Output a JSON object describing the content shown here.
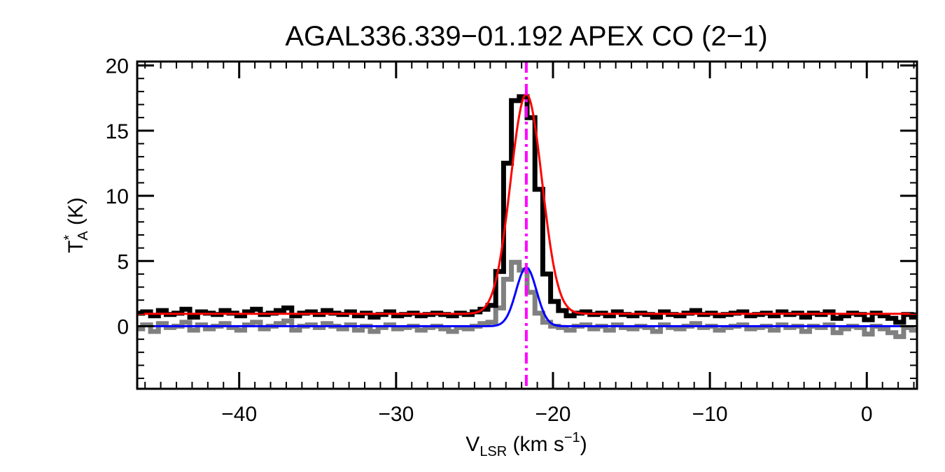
{
  "chart_data": {
    "type": "line",
    "title": "AGAL336.339−01.192  APEX CO (2−1)",
    "xlabel": {
      "main": "V",
      "sub": "LSR",
      "unit_prefix": " (km s",
      "unit_sup": "−1",
      "unit_suffix": ")"
    },
    "ylabel": {
      "main": "T",
      "sup": "*",
      "sub": "A",
      "unit": " (K)"
    },
    "xlim": [
      -46.5,
      3.2
    ],
    "ylim": [
      -4.8,
      20.3
    ],
    "xticks": [
      -40,
      -30,
      -20,
      -10,
      0
    ],
    "xtick_labels": [
      "−40",
      "−30",
      "−20",
      "−10",
      "0"
    ],
    "yticks": [
      0,
      5,
      10,
      15,
      20
    ],
    "ytick_labels": [
      "0",
      "5",
      "10",
      "15",
      "20"
    ],
    "grid": false,
    "legend": "none",
    "vline": {
      "x": -21.7,
      "color": "#ff00ff",
      "style": "dash-dot"
    },
    "series": [
      {
        "style": "histogram",
        "color": "#000000",
        "x": [
          -46.4,
          -45.9,
          -45.4,
          -44.9,
          -44.4,
          -43.9,
          -43.4,
          -42.9,
          -42.4,
          -41.9,
          -41.4,
          -40.9,
          -40.4,
          -39.9,
          -39.4,
          -38.9,
          -38.4,
          -37.9,
          -37.4,
          -36.9,
          -36.4,
          -35.9,
          -35.4,
          -34.9,
          -34.4,
          -33.9,
          -33.4,
          -32.9,
          -32.4,
          -31.9,
          -31.4,
          -30.9,
          -30.4,
          -29.9,
          -29.4,
          -28.9,
          -28.4,
          -27.9,
          -27.4,
          -26.9,
          -26.4,
          -25.9,
          -25.4,
          -24.9,
          -24.4,
          -23.9,
          -23.4,
          -22.9,
          -22.4,
          -21.9,
          -21.4,
          -20.9,
          -20.4,
          -19.9,
          -19.4,
          -18.9,
          -18.4,
          -17.9,
          -17.4,
          -16.9,
          -16.4,
          -15.9,
          -15.4,
          -14.9,
          -14.4,
          -13.9,
          -13.4,
          -12.9,
          -12.4,
          -11.9,
          -11.4,
          -10.9,
          -10.4,
          -9.9,
          -9.4,
          -8.9,
          -8.4,
          -7.9,
          -7.4,
          -6.9,
          -6.4,
          -5.9,
          -5.4,
          -4.9,
          -4.4,
          -3.9,
          -3.4,
          -2.9,
          -2.4,
          -1.9,
          -1.4,
          -0.9,
          -0.4,
          0.1,
          0.6,
          1.1,
          1.6,
          2.1,
          2.6,
          3.1
        ],
        "y": [
          1.0,
          1.1,
          0.8,
          1.2,
          0.9,
          1.0,
          1.3,
          0.7,
          1.1,
          1.0,
          0.9,
          1.2,
          1.0,
          0.8,
          1.1,
          1.3,
          0.9,
          1.0,
          1.2,
          1.4,
          0.8,
          1.0,
          1.1,
          0.9,
          1.2,
          1.0,
          0.9,
          1.1,
          0.8,
          1.0,
          0.7,
          0.9,
          1.1,
          0.8,
          0.9,
          1.0,
          0.8,
          0.9,
          1.0,
          0.9,
          0.8,
          1.0,
          0.9,
          1.1,
          1.3,
          1.6,
          4.2,
          12.5,
          17.3,
          17.6,
          16.0,
          10.5,
          4.0,
          1.9,
          1.2,
          0.8,
          1.0,
          1.1,
          0.9,
          1.0,
          0.8,
          1.1,
          0.9,
          0.8,
          1.0,
          0.9,
          0.7,
          1.1,
          0.9,
          0.8,
          1.0,
          1.2,
          0.9,
          1.0,
          0.8,
          0.9,
          1.0,
          1.1,
          0.8,
          0.9,
          1.0,
          0.8,
          1.1,
          0.9,
          1.0,
          0.7,
          1.0,
          0.9,
          1.1,
          0.6,
          0.8,
          1.0,
          0.9,
          0.5,
          1.0,
          0.8,
          0.6,
          0.3,
          0.9,
          0.7
        ]
      },
      {
        "style": "histogram",
        "color": "#808080",
        "x": [
          -46.4,
          -45.9,
          -45.4,
          -44.9,
          -44.4,
          -43.9,
          -43.4,
          -42.9,
          -42.4,
          -41.9,
          -41.4,
          -40.9,
          -40.4,
          -39.9,
          -39.4,
          -38.9,
          -38.4,
          -37.9,
          -37.4,
          -36.9,
          -36.4,
          -35.9,
          -35.4,
          -34.9,
          -34.4,
          -33.9,
          -33.4,
          -32.9,
          -32.4,
          -31.9,
          -31.4,
          -30.9,
          -30.4,
          -29.9,
          -29.4,
          -28.9,
          -28.4,
          -27.9,
          -27.4,
          -26.9,
          -26.4,
          -25.9,
          -25.4,
          -24.9,
          -24.4,
          -23.9,
          -23.4,
          -22.9,
          -22.4,
          -21.9,
          -21.4,
          -20.9,
          -20.4,
          -19.9,
          -19.4,
          -18.9,
          -18.4,
          -17.9,
          -17.4,
          -16.9,
          -16.4,
          -15.9,
          -15.4,
          -14.9,
          -14.4,
          -13.9,
          -13.4,
          -12.9,
          -12.4,
          -11.9,
          -11.4,
          -10.9,
          -10.4,
          -9.9,
          -9.4,
          -8.9,
          -8.4,
          -7.9,
          -7.4,
          -6.9,
          -6.4,
          -5.9,
          -5.4,
          -4.9,
          -4.4,
          -3.9,
          -3.4,
          -2.9,
          -2.4,
          -1.9,
          -1.4,
          -0.9,
          -0.4,
          0.1,
          0.6,
          1.1,
          1.6,
          2.1,
          2.6,
          3.1
        ],
        "y": [
          -0.2,
          0.1,
          -0.4,
          0.2,
          -0.1,
          0.0,
          0.3,
          -0.3,
          0.1,
          -0.2,
          0.0,
          0.2,
          -0.1,
          -0.3,
          0.1,
          0.3,
          -0.2,
          0.0,
          0.2,
          0.4,
          -0.3,
          0.0,
          0.1,
          -0.1,
          0.2,
          0.0,
          -0.2,
          0.1,
          -0.3,
          0.0,
          -0.4,
          -0.1,
          0.1,
          -0.2,
          -0.1,
          0.0,
          -0.3,
          -0.1,
          0.0,
          -0.2,
          -0.4,
          -0.1,
          -0.2,
          0.0,
          0.2,
          0.3,
          1.4,
          3.6,
          4.9,
          4.3,
          2.6,
          1.0,
          0.3,
          0.0,
          -0.1,
          -0.3,
          0.0,
          0.1,
          -0.2,
          0.0,
          -0.3,
          0.1,
          -0.1,
          -0.2,
          0.0,
          -0.1,
          -0.4,
          0.1,
          -0.1,
          -0.2,
          0.0,
          0.2,
          -0.1,
          0.0,
          -0.3,
          -0.1,
          0.0,
          0.1,
          -0.2,
          -0.1,
          0.0,
          -0.3,
          0.1,
          -0.1,
          0.0,
          -0.4,
          0.0,
          -0.1,
          0.1,
          -0.5,
          -0.2,
          0.0,
          -0.1,
          -0.6,
          0.0,
          -0.2,
          -0.5,
          -0.8,
          -0.1,
          -0.3
        ]
      },
      {
        "style": "gaussian",
        "color": "#ff0000",
        "baseline": 0.95,
        "amplitude": 16.85,
        "center": -21.7,
        "sigma": 1.0
      },
      {
        "style": "gaussian",
        "color": "#0000ff",
        "baseline": 0.0,
        "amplitude": 4.5,
        "center": -21.7,
        "sigma": 0.65
      }
    ]
  }
}
